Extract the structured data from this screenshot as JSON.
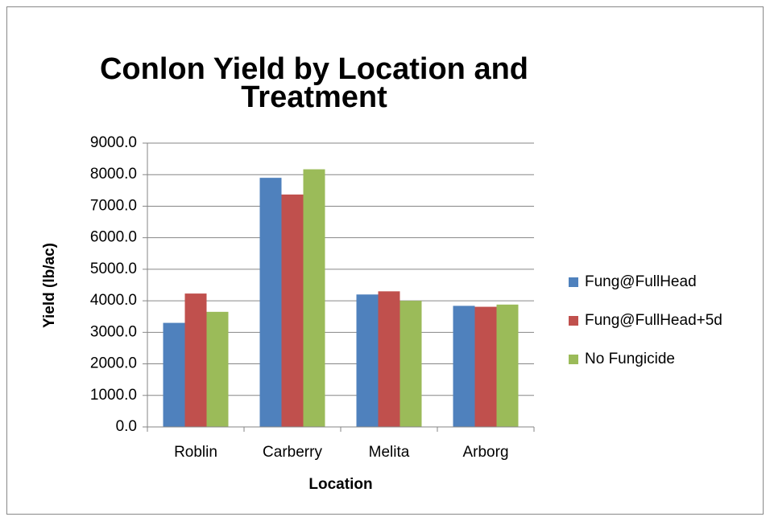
{
  "chart_data": {
    "type": "bar",
    "title": [
      "Conlon Yield by Location and",
      "Treatment"
    ],
    "x_label": "Location",
    "y_label": "Yield (lb/ac)",
    "categories": [
      "Roblin",
      "Carberry",
      "Melita",
      "Arborg"
    ],
    "series": [
      {
        "name": "Fung@FullHead",
        "color": "#4f81bd",
        "values": [
          3300,
          7900,
          4200,
          3840
        ]
      },
      {
        "name": "Fung@FullHead+5d",
        "color": "#c0504d",
        "values": [
          4230,
          7370,
          4300,
          3810
        ]
      },
      {
        "name": "No Fungicide",
        "color": "#9bbb59",
        "values": [
          3650,
          8170,
          4000,
          3880
        ]
      }
    ],
    "ylim": [
      0,
      9000
    ],
    "yticks": [
      {
        "value": 0,
        "label": "0.0"
      },
      {
        "value": 1000,
        "label": "1000.0"
      },
      {
        "value": 2000,
        "label": "2000.0"
      },
      {
        "value": 3000,
        "label": "3000.0"
      },
      {
        "value": 4000,
        "label": "4000.0"
      },
      {
        "value": 5000,
        "label": "5000.0"
      },
      {
        "value": 6000,
        "label": "6000.0"
      },
      {
        "value": 7000,
        "label": "7000.0"
      },
      {
        "value": 8000,
        "label": "8000.0"
      },
      {
        "value": 9000,
        "label": "9000.0"
      }
    ],
    "grid": true,
    "legend": "right"
  }
}
